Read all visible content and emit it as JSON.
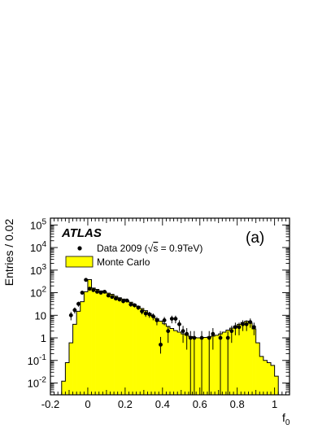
{
  "chart_data": {
    "type": "histogram",
    "experiment_label": "ATLAS",
    "panel_label": "(a)",
    "xlabel": "f",
    "xlabel_subscript": "0",
    "ylabel": "Entries / 0.02",
    "xlim": [
      -0.2,
      1.08
    ],
    "ylim": [
      0.003,
      200000
    ],
    "yscale": "log",
    "xticks": [
      -0.2,
      0,
      0.2,
      0.4,
      0.6,
      0.8,
      1
    ],
    "xtick_labels": [
      "-0.2",
      "0",
      "0.2",
      "0.4",
      "0.6",
      "0.8",
      "1"
    ],
    "yticks": [
      {
        "value": 0.01,
        "base": "10",
        "exp": "-2"
      },
      {
        "value": 0.1,
        "base": "10",
        "exp": "-1"
      },
      {
        "value": 1,
        "label": "1"
      },
      {
        "value": 10,
        "label": "10"
      },
      {
        "value": 100,
        "base": "10",
        "exp": "2"
      },
      {
        "value": 1000,
        "base": "10",
        "exp": "3"
      },
      {
        "value": 10000,
        "base": "10",
        "exp": "4"
      },
      {
        "value": 100000,
        "base": "10",
        "exp": "5"
      }
    ],
    "legend": {
      "placement": "top-left",
      "data_label": "Data 2009 (",
      "sqrt_symbol": "√",
      "data_label_s": "s",
      "data_label_energy": " = 0.9TeV)",
      "mc_label": "Monte Carlo"
    },
    "colors": {
      "mc_fill": "#ffff00",
      "line": "#000000"
    },
    "mc": {
      "bin_width": 0.02,
      "bin_low_edges": [
        -0.16,
        -0.14,
        -0.12,
        -0.1,
        -0.08,
        -0.06,
        -0.04,
        -0.02,
        0.0,
        0.02,
        0.04,
        0.06,
        0.08,
        0.1,
        0.12,
        0.14,
        0.16,
        0.18,
        0.2,
        0.22,
        0.24,
        0.26,
        0.28,
        0.3,
        0.32,
        0.34,
        0.36,
        0.38,
        0.4,
        0.42,
        0.44,
        0.46,
        0.48,
        0.5,
        0.52,
        0.54,
        0.56,
        0.58,
        0.6,
        0.62,
        0.64,
        0.66,
        0.68,
        0.7,
        0.72,
        0.74,
        0.76,
        0.78,
        0.8,
        0.82,
        0.84,
        0.86,
        0.88,
        0.9,
        0.92,
        0.94,
        0.96,
        0.98,
        1.0,
        1.02
      ],
      "values": [
        0.003,
        0.012,
        0.08,
        0.6,
        4,
        15,
        40,
        110,
        380,
        160,
        140,
        120,
        110,
        95,
        85,
        70,
        60,
        52,
        44,
        38,
        30,
        25,
        20,
        16,
        12,
        9,
        7,
        5.5,
        4.2,
        3.2,
        2.6,
        2.1,
        1.8,
        1.5,
        1.3,
        1.15,
        1.05,
        1.0,
        1.0,
        1.05,
        1.1,
        1.2,
        1.3,
        1.5,
        1.8,
        2.2,
        2.7,
        3.3,
        4,
        4.8,
        5.5,
        4.5,
        2.5,
        0.6,
        0.15,
        0.1,
        0.08,
        0.06,
        0.02,
        0.003
      ]
    },
    "data": {
      "x": [
        -0.09,
        -0.07,
        -0.05,
        -0.03,
        -0.01,
        0.01,
        0.03,
        0.05,
        0.07,
        0.09,
        0.11,
        0.13,
        0.15,
        0.17,
        0.19,
        0.21,
        0.23,
        0.25,
        0.27,
        0.29,
        0.31,
        0.33,
        0.35,
        0.37,
        0.39,
        0.41,
        0.43,
        0.45,
        0.47,
        0.49,
        0.51,
        0.53,
        0.55,
        0.57,
        0.61,
        0.65,
        0.67,
        0.71,
        0.75,
        0.77,
        0.79,
        0.81,
        0.83,
        0.85,
        0.87,
        0.89
      ],
      "y": [
        10,
        17,
        32,
        100,
        370,
        150,
        130,
        110,
        100,
        110,
        75,
        65,
        55,
        50,
        42,
        45,
        30,
        28,
        22,
        15,
        12,
        11,
        9,
        6,
        0.5,
        6,
        2,
        7,
        7,
        4,
        2,
        1.5,
        1,
        1,
        1,
        1,
        1.5,
        1,
        1,
        2,
        3,
        3,
        4,
        4,
        5,
        3
      ],
      "err_low": [
        4,
        5,
        8,
        18,
        40,
        20,
        18,
        15,
        14,
        15,
        11,
        10,
        9,
        9,
        8,
        8,
        6,
        6,
        5,
        4,
        3.5,
        3.3,
        3,
        2.4,
        0.3,
        2.4,
        1.4,
        2.6,
        2.6,
        2,
        1.4,
        1.2,
        1,
        1,
        1,
        1,
        1.2,
        1,
        1,
        1.4,
        1.7,
        1.7,
        2,
        2,
        2.2,
        1.7
      ],
      "err_high": [
        4,
        5,
        8,
        18,
        40,
        20,
        18,
        15,
        14,
        15,
        11,
        10,
        9,
        9,
        8,
        8,
        6,
        6,
        5,
        4,
        3.5,
        3.3,
        3,
        2.4,
        0.6,
        2.4,
        1.4,
        2.6,
        2.6,
        2,
        1.4,
        1.2,
        1,
        1,
        1,
        1,
        1.2,
        1,
        1,
        1.4,
        1.7,
        1.7,
        2,
        2,
        2.2,
        1.7
      ]
    }
  }
}
